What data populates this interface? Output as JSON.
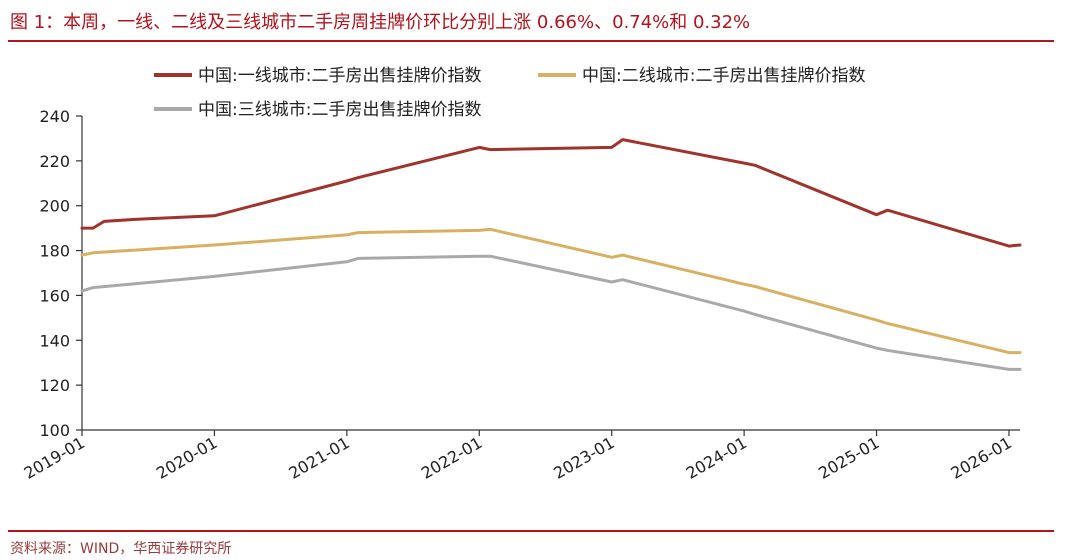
{
  "header": {
    "title": "图 1：本周，一线、二线及三线城市二手房周挂牌价环比分别上涨 0.66%、0.74%和 0.32%"
  },
  "footer": {
    "source": "资料来源：WIND，华西证券研究所"
  },
  "chart_data": {
    "type": "line",
    "title": "图 1：本周，一线、二线及三线城市二手房周挂牌价环比分别上涨 0.66%、0.74%和 0.32%",
    "xlabel": "",
    "ylabel": "",
    "xlim": [
      "2019-01",
      "2026-02"
    ],
    "ylim": [
      100,
      240
    ],
    "yticks": [
      100,
      120,
      140,
      160,
      180,
      200,
      220,
      240
    ],
    "xticks": [
      "2019-01",
      "2020-01",
      "2021-01",
      "2022-01",
      "2023-01",
      "2024-01",
      "2025-01",
      "2026-01"
    ],
    "grid": false,
    "legend_position": "top",
    "series": [
      {
        "name": "中国:一线城市:二手房出售挂牌价指数",
        "color": "#a0342d",
        "x": [
          "2019-01",
          "2019-02",
          "2019-03",
          "2019-06",
          "2020-01",
          "2021-01",
          "2021-02",
          "2022-01",
          "2022-02",
          "2023-01",
          "2023-02",
          "2024-01",
          "2024-02",
          "2025-01",
          "2025-02",
          "2026-01",
          "2026-02"
        ],
        "values": [
          190,
          190,
          193,
          194,
          195.5,
          211,
          212.5,
          226,
          225,
          226,
          229.5,
          219,
          218,
          196,
          198,
          182,
          182.5
        ]
      },
      {
        "name": "中国:二线城市:二手房出售挂牌价指数",
        "color": "#d9b062",
        "x": [
          "2019-01",
          "2019-02",
          "2020-01",
          "2021-01",
          "2021-02",
          "2022-01",
          "2022-02",
          "2023-01",
          "2023-02",
          "2024-01",
          "2024-02",
          "2025-01",
          "2025-02",
          "2026-01",
          "2026-02"
        ],
        "values": [
          178,
          179,
          182.5,
          187,
          188,
          189,
          189.5,
          177,
          178,
          165,
          164,
          149,
          147.5,
          134.5,
          134.5
        ]
      },
      {
        "name": "中国:三线城市:二手房出售挂牌价指数",
        "color": "#a9a9a9",
        "x": [
          "2019-01",
          "2019-02",
          "2020-01",
          "2021-01",
          "2021-02",
          "2022-01",
          "2022-02",
          "2023-01",
          "2023-02",
          "2024-01",
          "2024-02",
          "2025-01",
          "2025-02",
          "2026-01",
          "2026-02"
        ],
        "values": [
          162,
          163.5,
          168.5,
          175,
          176.5,
          177.5,
          177.5,
          166,
          167,
          153,
          151.5,
          136.5,
          135.5,
          127,
          127
        ]
      }
    ]
  }
}
